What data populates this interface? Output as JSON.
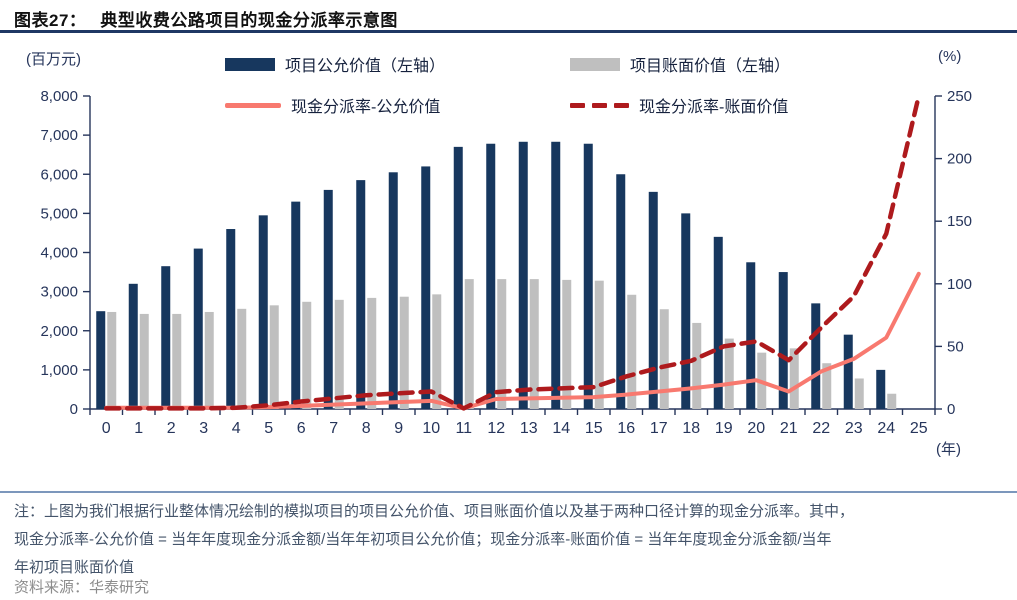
{
  "header": {
    "figure_label": "图表27：",
    "title": "典型收费公路项目的现金分派率示意图"
  },
  "chart_data": {
    "type": "combo-bar-line",
    "title": "典型收费公路项目的现金分派率示意图",
    "grid": false,
    "legend_position": "top",
    "categories": [
      "0",
      "1",
      "2",
      "3",
      "4",
      "5",
      "6",
      "7",
      "8",
      "9",
      "10",
      "11",
      "12",
      "13",
      "14",
      "15",
      "16",
      "17",
      "18",
      "19",
      "20",
      "21",
      "22",
      "23",
      "24",
      "25"
    ],
    "series": [
      {
        "name": "项目公允价值（左轴）",
        "type": "bar",
        "axis": "left",
        "color": "#17375E",
        "values": [
          2500,
          3200,
          3650,
          4100,
          4600,
          4950,
          5300,
          5600,
          5850,
          6050,
          6200,
          6700,
          6780,
          6830,
          6830,
          6780,
          6000,
          5550,
          5000,
          4400,
          3750,
          3500,
          2700,
          1900,
          1000,
          null
        ]
      },
      {
        "name": "项目账面价值（左轴）",
        "type": "bar",
        "axis": "left",
        "color": "#BFBFBF",
        "values": [
          2480,
          2430,
          2430,
          2480,
          2560,
          2650,
          2740,
          2790,
          2840,
          2870,
          2930,
          3320,
          3320,
          3320,
          3300,
          3280,
          2920,
          2550,
          2200,
          1800,
          1440,
          1550,
          1170,
          780,
          390,
          null
        ]
      },
      {
        "name": "现金分派率-公允价值",
        "type": "line",
        "style": "solid",
        "axis": "right",
        "color": "#F8796F",
        "values": [
          1,
          1,
          1,
          1,
          1,
          1.5,
          2.5,
          3.5,
          4.5,
          5.5,
          6.5,
          0.5,
          8,
          8.5,
          9,
          9.5,
          11.5,
          14,
          16.5,
          19.5,
          23,
          14,
          30,
          40,
          57,
          108
        ]
      },
      {
        "name": "现金分派率-账面价值",
        "type": "line",
        "style": "dashed",
        "axis": "right",
        "color": "#AE1A1D",
        "values": [
          0.5,
          0.5,
          0.5,
          0.5,
          1,
          3,
          6,
          8.5,
          11,
          12.5,
          14,
          0.5,
          13.5,
          15.5,
          16.5,
          17.5,
          26,
          33,
          38.5,
          50,
          54,
          39,
          65,
          90,
          140,
          250
        ]
      }
    ],
    "left_axis": {
      "unit": "(百万元)",
      "min": 0,
      "max": 8000,
      "step": 1000,
      "tick_labels": [
        "0",
        "1,000",
        "2,000",
        "3,000",
        "4,000",
        "5,000",
        "6,000",
        "7,000",
        "8,000"
      ]
    },
    "right_axis": {
      "unit": "(%)",
      "min": 0,
      "max": 250,
      "step": 50,
      "tick_labels": [
        "0",
        "50",
        "100",
        "150",
        "200",
        "250"
      ]
    },
    "x_axis": {
      "unit": "(年)",
      "min": 0,
      "max": 25
    }
  },
  "note": {
    "line1": "注：上图为我们根据行业整体情况绘制的模拟项目的项目公允价值、项目账面价值以及基于两种口径计算的现金分派率。其中，",
    "line2": "现金分派率-公允价值 = 当年年度现金分派金额/当年年初项目公允价值；现金分派率-账面价值 = 当年年度现金分派金额/当年",
    "line3": "年初项目账面价值"
  },
  "source": "资料来源：华泰研究"
}
